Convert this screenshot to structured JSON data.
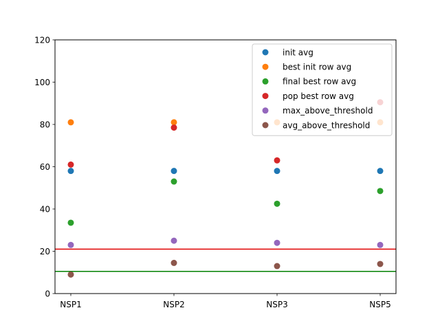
{
  "chart_data": {
    "type": "scatter",
    "categories": [
      "NSP1",
      "NSP2",
      "NSP3",
      "NSP5"
    ],
    "ylim": [
      0,
      120
    ],
    "yticks": [
      0,
      20,
      40,
      60,
      80,
      100,
      120
    ],
    "grid": false,
    "legend_position": "top-right",
    "series": [
      {
        "name": "init avg",
        "color": "#1f77b4",
        "values": [
          58,
          58,
          58,
          58
        ]
      },
      {
        "name": "best init row avg",
        "color": "#ff7f0e",
        "values": [
          81,
          81,
          81,
          81
        ]
      },
      {
        "name": "final best row avg",
        "color": "#2ca02c",
        "values": [
          33.5,
          53,
          42.5,
          48.5
        ]
      },
      {
        "name": "pop best row avg",
        "color": "#d62728",
        "values": [
          61,
          78.5,
          63,
          90.5
        ]
      },
      {
        "name": "max_above_threshold",
        "color": "#9467bd",
        "values": [
          23,
          25,
          24,
          23
        ]
      },
      {
        "name": "avg_above_threshold",
        "color": "#8c564b",
        "values": [
          9,
          14.5,
          13,
          14
        ]
      }
    ],
    "hlines": [
      {
        "y": 21,
        "color": "#e00000"
      },
      {
        "y": 10.5,
        "color": "#008000"
      }
    ]
  }
}
